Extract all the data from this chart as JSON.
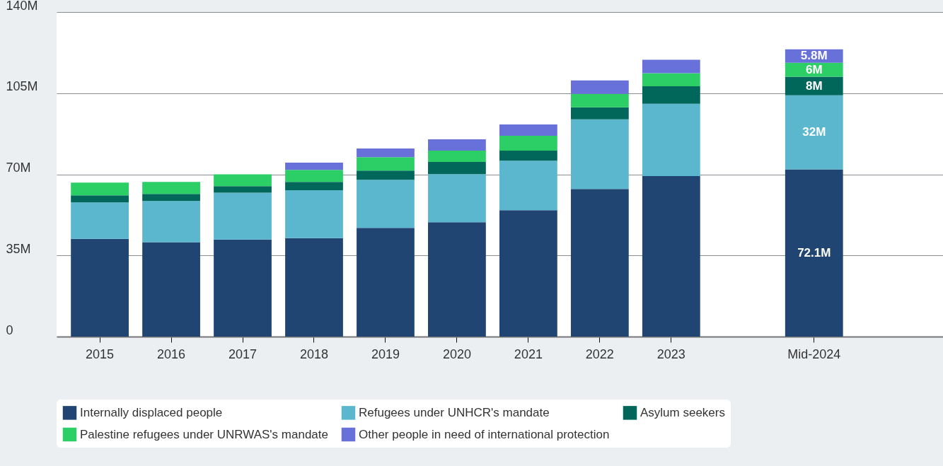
{
  "chart_data": {
    "type": "bar",
    "stacked": true,
    "categories": [
      "2015",
      "2016",
      "2017",
      "2018",
      "2019",
      "2020",
      "2021",
      "2022",
      "2023",
      "Mid-2024"
    ],
    "series": [
      {
        "name": "Internally displaced people",
        "color": "#214573",
        "values": [
          42.2,
          40.7,
          41.9,
          42.5,
          46.9,
          49.3,
          54.5,
          63.7,
          69.2,
          72.1
        ],
        "value_labels": [
          null,
          null,
          null,
          null,
          null,
          null,
          null,
          null,
          null,
          "72.1M"
        ]
      },
      {
        "name": "Refugees under UNHCR's mandate",
        "color": "#5bb7ce",
        "values": [
          15.7,
          17.8,
          20.2,
          20.6,
          20.7,
          20.8,
          21.4,
          30.0,
          31.2,
          32
        ],
        "value_labels": [
          null,
          null,
          null,
          null,
          null,
          null,
          null,
          null,
          null,
          "32M"
        ]
      },
      {
        "name": "Asylum seekers",
        "color": "#00675a",
        "values": [
          3.0,
          3.0,
          2.8,
          3.6,
          4.0,
          5.2,
          4.3,
          5.2,
          7.6,
          8
        ],
        "value_labels": [
          null,
          null,
          null,
          null,
          null,
          null,
          null,
          null,
          null,
          "8M"
        ]
      },
      {
        "name": "Palestine refugees under UNRWAS's mandate",
        "color": "#2ccf65",
        "values": [
          5.5,
          5.2,
          5.1,
          5.2,
          5.8,
          4.9,
          6.4,
          5.8,
          5.6,
          6
        ],
        "value_labels": [
          null,
          null,
          null,
          null,
          null,
          null,
          null,
          null,
          null,
          "6M"
        ]
      },
      {
        "name": "Other people in need of international protection",
        "color": "#6870d9",
        "values": [
          null,
          null,
          null,
          3.1,
          3.7,
          4.9,
          4.9,
          5.8,
          5.8,
          5.8
        ],
        "value_labels": [
          null,
          null,
          null,
          null,
          null,
          null,
          null,
          null,
          null,
          "5.8M"
        ]
      }
    ],
    "ylim": [
      0,
      140
    ],
    "yticks": [
      0,
      {
        "value": 35,
        "label": "35M"
      },
      {
        "value": 70,
        "label": "70M"
      },
      {
        "value": 105,
        "label": "105M"
      },
      {
        "value": 140,
        "label": "140M"
      }
    ],
    "grid": "y",
    "legend": "bottom"
  }
}
